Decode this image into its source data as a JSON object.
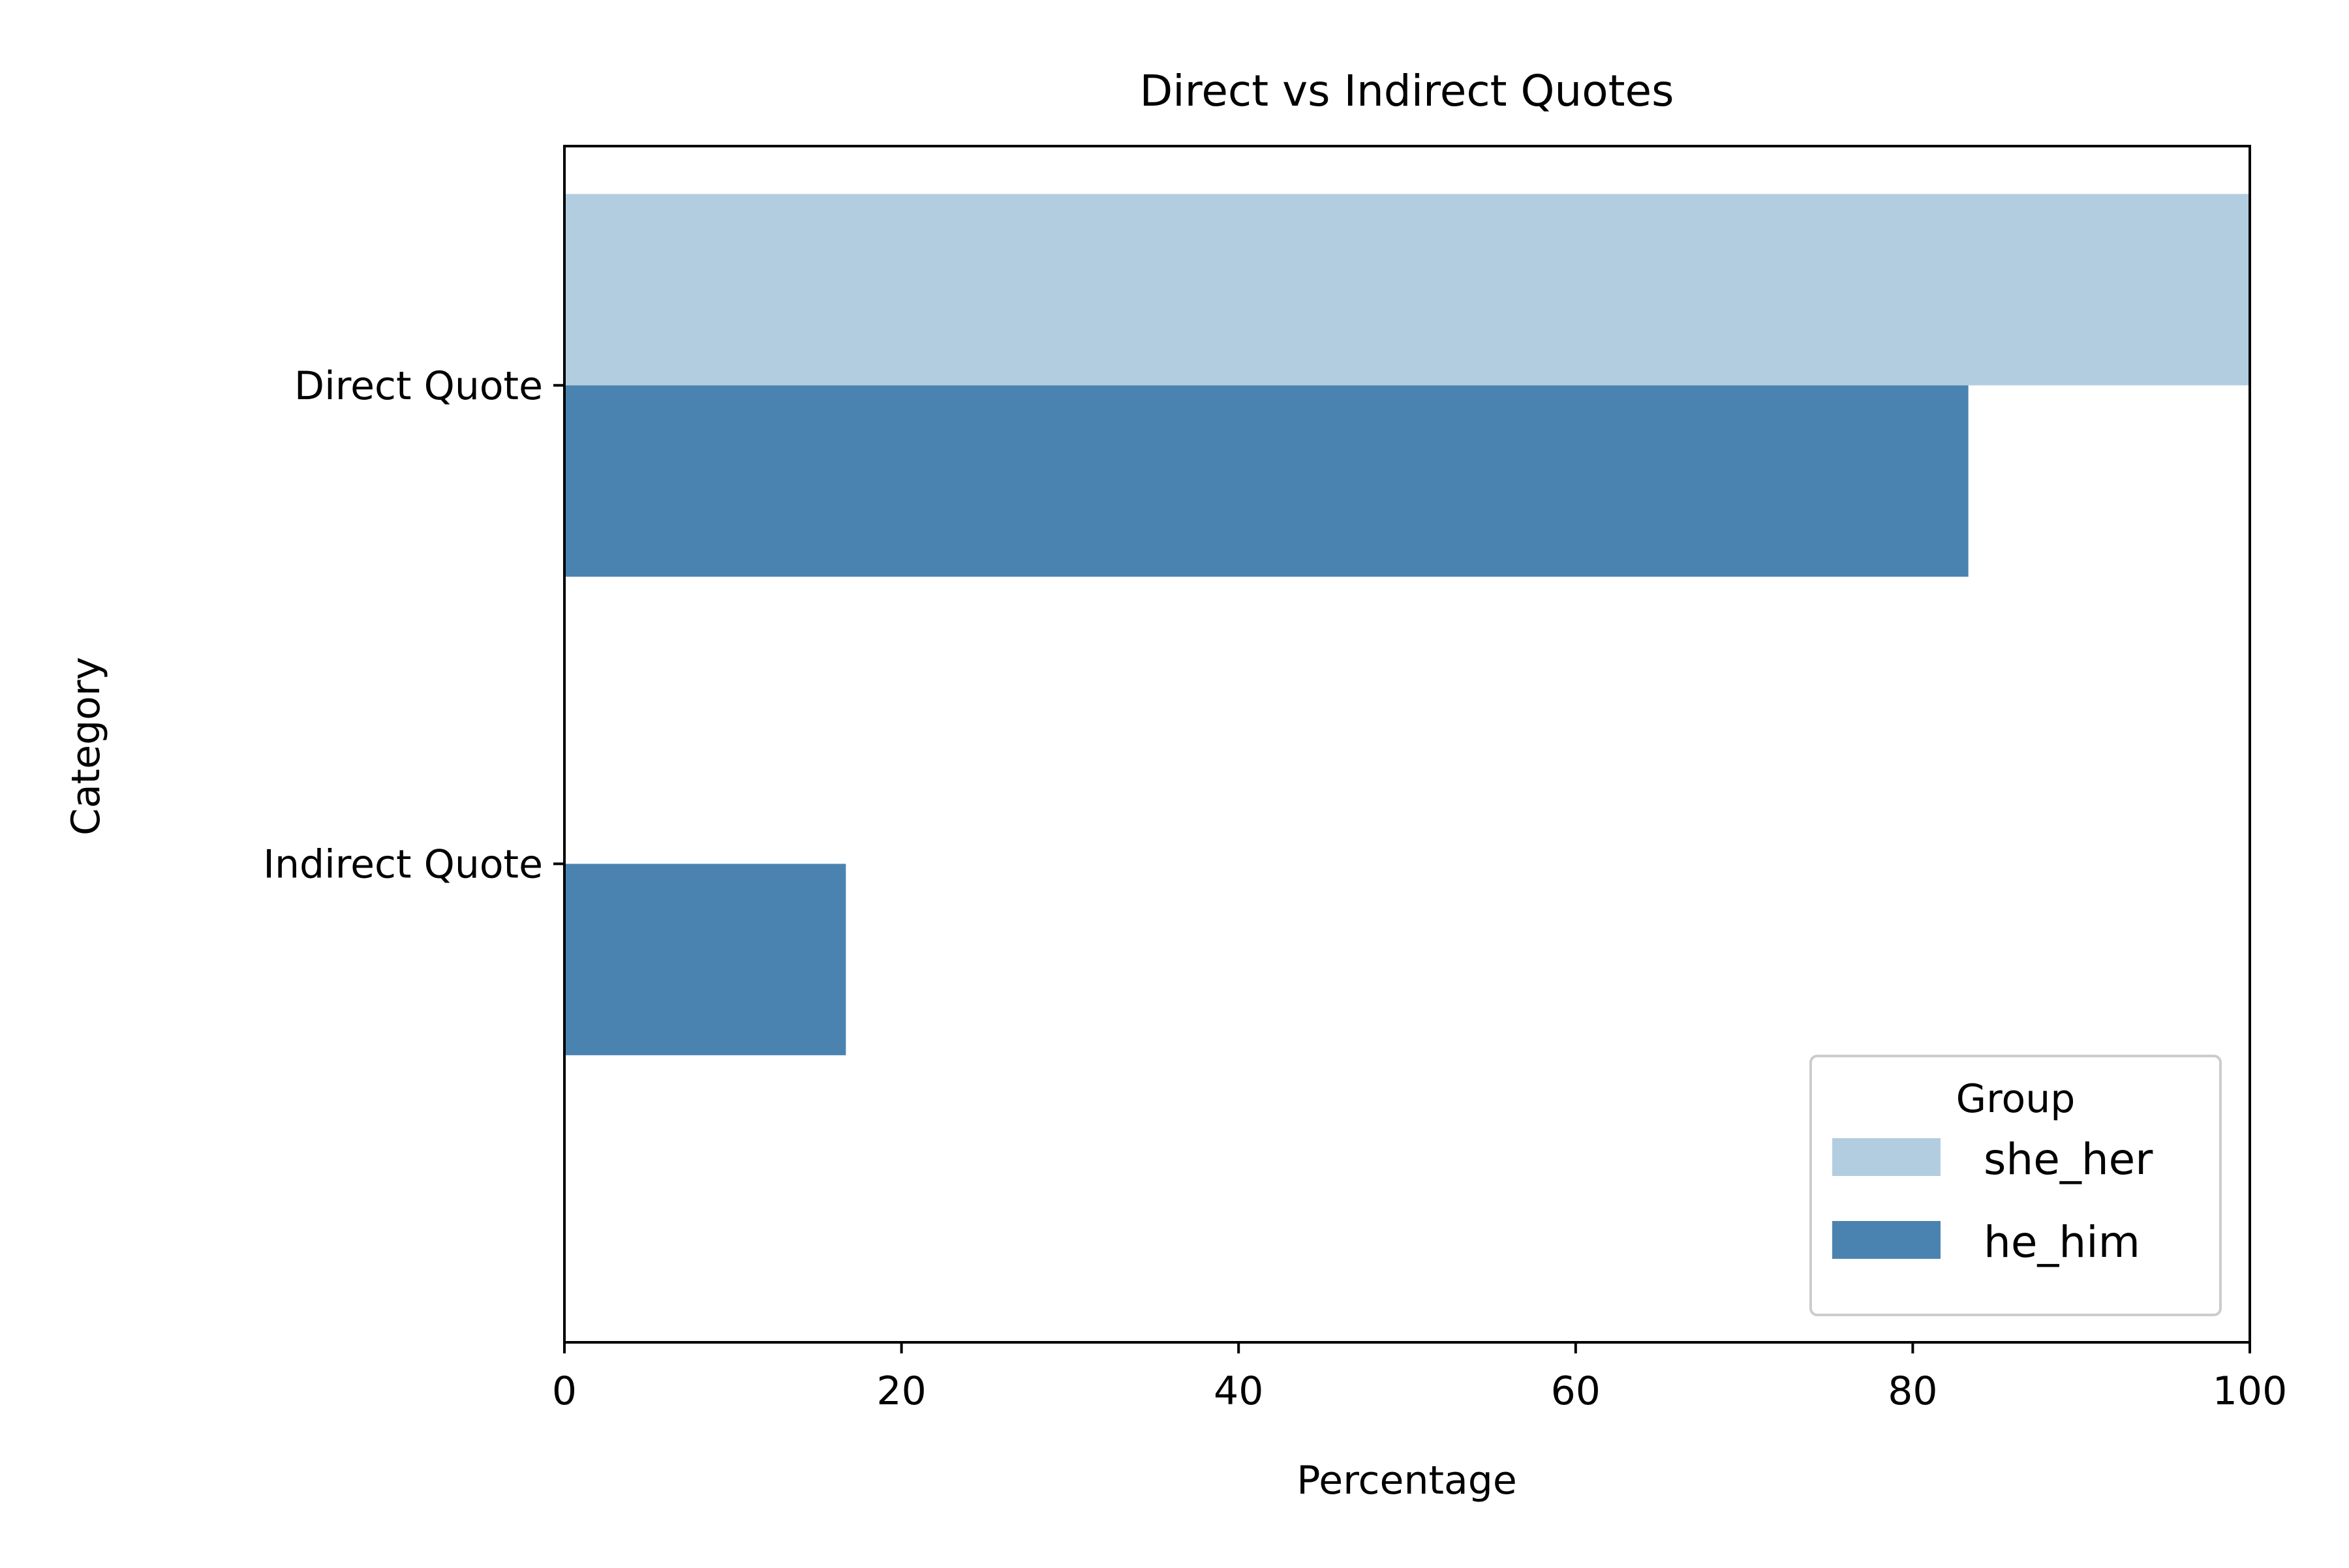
{
  "chart_data": {
    "type": "bar",
    "orientation": "horizontal",
    "title": "Direct vs Indirect Quotes",
    "xlabel": "Percentage",
    "ylabel": "Category",
    "categories": [
      "Direct Quote",
      "Indirect Quote"
    ],
    "series": [
      {
        "name": "she_her",
        "values": [
          100,
          0
        ],
        "color": "#b3cde0"
      },
      {
        "name": "he_him",
        "values": [
          83.3,
          16.7
        ],
        "color": "#4a83b0"
      }
    ],
    "xlim": [
      0,
      100
    ],
    "xticks": [
      0,
      20,
      40,
      60,
      80,
      100
    ],
    "grid": false,
    "legend": {
      "title": "Group",
      "placement": "lower right"
    }
  }
}
